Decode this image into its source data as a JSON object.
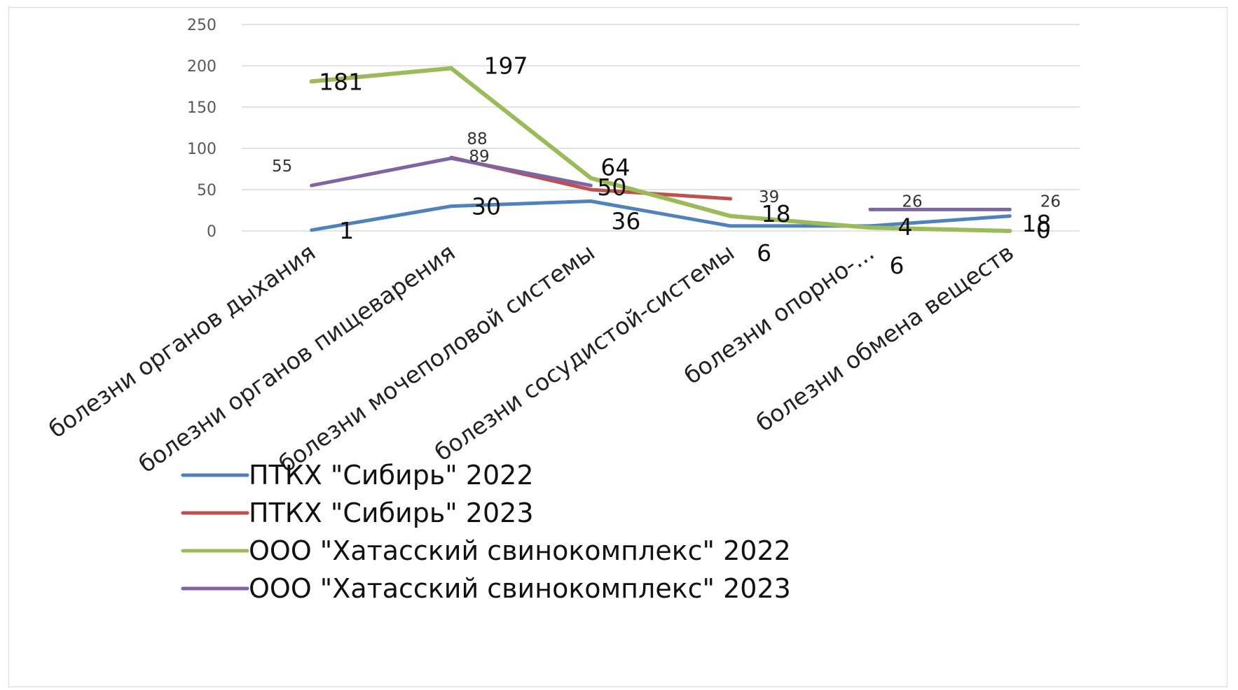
{
  "chart_data": {
    "type": "line",
    "title": "",
    "xlabel": "",
    "ylabel": "",
    "ylim": [
      0,
      250
    ],
    "yticks": [
      0,
      50,
      100,
      150,
      200,
      250
    ],
    "categories": [
      "болезни органов дыхания",
      "болезни органов пищеварения",
      "болезни мочеполовой системы",
      "болезни сосудистой-системы",
      "болезни опорно-...",
      "болезни обмена веществ"
    ],
    "grid": true,
    "legend_position": "bottom",
    "series": [
      {
        "name": "ПТКХ \"Сибирь\" 2022",
        "color": "#4f81bd",
        "values": [
          1,
          30,
          36,
          6,
          6,
          18
        ],
        "labels": [
          "1",
          "30",
          "36",
          "6",
          "6",
          "18"
        ]
      },
      {
        "name": "ПТКХ \"Сибирь\" 2023",
        "color": "#c0504d",
        "values": [
          null,
          89,
          50,
          39,
          null,
          null
        ],
        "labels": [
          "",
          "89",
          "50",
          "39",
          "",
          ""
        ]
      },
      {
        "name": "ООО \"Хатасский свинокомплекс\" 2022",
        "color": "#9bbb59",
        "values": [
          181,
          197,
          64,
          18,
          4,
          0
        ],
        "labels": [
          "181",
          "197",
          "64",
          "18",
          "4",
          "0"
        ]
      },
      {
        "name": "ООО \"Хатасский свинокомплекс\" 2023",
        "color": "#8064a2",
        "values": [
          55,
          88,
          55,
          null,
          26,
          26
        ],
        "labels": [
          "55",
          "88",
          "",
          "",
          "26",
          "26"
        ]
      }
    ]
  }
}
